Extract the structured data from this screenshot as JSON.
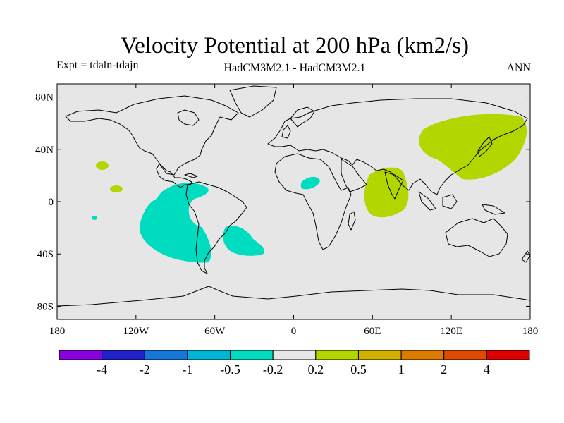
{
  "title": "Velocity Potential at 200 hPa (km2/s)",
  "subtitle_left": "Expt = tdaln-tdajn",
  "subtitle_center": "HadCM3M2.1 - HadCM3M2.1",
  "subtitle_right": "ANN",
  "map": {
    "lon_range": [
      -180,
      180
    ],
    "lat_range": [
      -90,
      90
    ],
    "x_ticks": [
      {
        "value": -180,
        "label": "180"
      },
      {
        "value": -120,
        "label": "120W"
      },
      {
        "value": -60,
        "label": "60W"
      },
      {
        "value": 0,
        "label": "0"
      },
      {
        "value": 60,
        "label": "60E"
      },
      {
        "value": 120,
        "label": "120E"
      },
      {
        "value": 180,
        "label": "180"
      }
    ],
    "y_ticks": [
      {
        "value": 80,
        "label": "80N"
      },
      {
        "value": 40,
        "label": "40N"
      },
      {
        "value": 0,
        "label": "0"
      },
      {
        "value": -40,
        "label": "40S"
      },
      {
        "value": -80,
        "label": "80S"
      }
    ],
    "colors": {
      "background": "#e6e6e6",
      "positive": "#b2d600",
      "negative": "#00dcc0",
      "coast": "#000000"
    }
  },
  "colorbar": {
    "colors": [
      "#8800dd",
      "#2222cc",
      "#1777d8",
      "#00b4d6",
      "#00dcc0",
      "#e6e6e6",
      "#b2d600",
      "#d2b000",
      "#dd7a00",
      "#dd4a00",
      "#dd0000"
    ],
    "labels": [
      "-4",
      "-2",
      "-1",
      "-0.5",
      "-0.2",
      "0.2",
      "0.5",
      "1",
      "2",
      "4"
    ]
  }
}
